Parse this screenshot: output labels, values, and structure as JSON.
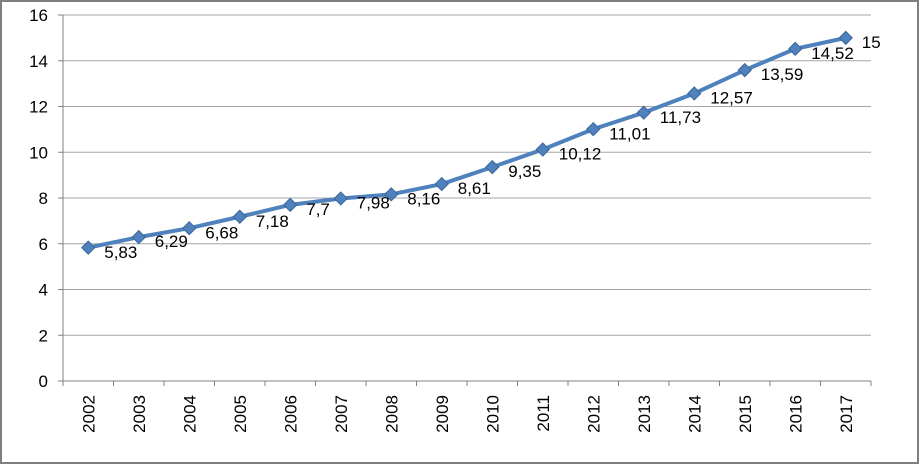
{
  "chart_data": {
    "type": "line",
    "title": "",
    "categories": [
      "2002",
      "2003",
      "2004",
      "2005",
      "2006",
      "2007",
      "2008",
      "2009",
      "2010",
      "2011",
      "2012",
      "2013",
      "2014",
      "2015",
      "2016",
      "2017"
    ],
    "series": [
      {
        "name": "",
        "values": [
          5.83,
          6.29,
          6.68,
          7.18,
          7.7,
          7.98,
          8.16,
          8.61,
          9.35,
          10.12,
          11.01,
          11.73,
          12.57,
          13.59,
          14.52,
          15
        ],
        "labels": [
          "5,83",
          "6,29",
          "6,68",
          "7,18",
          "7,7",
          "7,98",
          "8,16",
          "8,61",
          "9,35",
          "10,12",
          "11,01",
          "11,73",
          "12,57",
          "13,59",
          "14,52",
          "15"
        ]
      }
    ],
    "xlabel": "",
    "ylabel": "",
    "ylim": [
      0,
      16
    ],
    "ytick_step": 2,
    "ytick_labels": [
      "0",
      "2",
      "4",
      "6",
      "8",
      "10",
      "12",
      "14",
      "16"
    ],
    "grid": true,
    "legend_position": "none",
    "marker": "diamond"
  },
  "colors": {
    "line": "#4F81BD",
    "marker_fill": "#4F81BD",
    "marker_stroke": "#3A679B",
    "gridline": "#A6A6A6",
    "axis": "#808080",
    "label_text": "#000000",
    "frame_border": "#7F7F7F",
    "background": "#FFFFFF"
  }
}
